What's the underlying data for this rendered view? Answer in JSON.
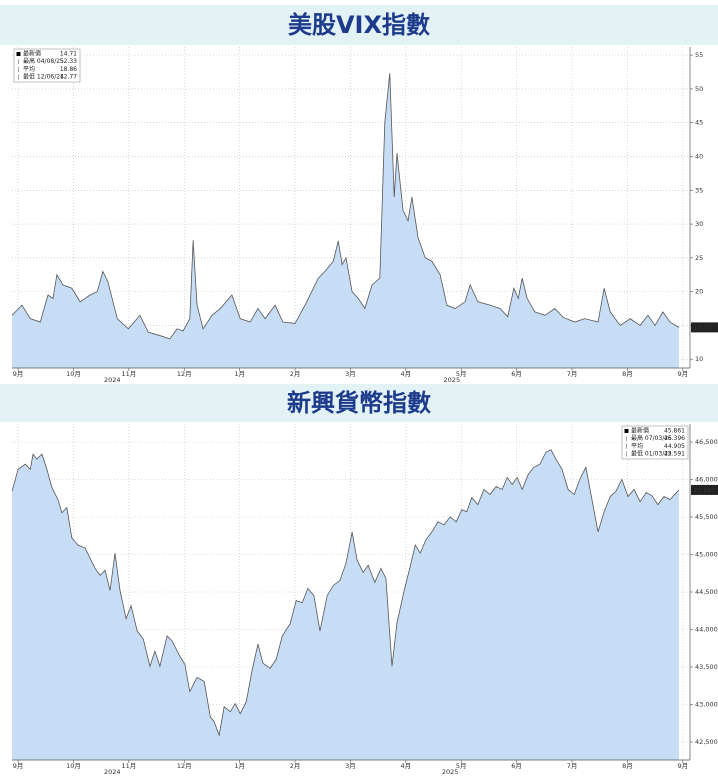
{
  "chart_data": [
    {
      "type": "area",
      "title": "美股VIX指數",
      "color": "#c7ddf6",
      "line_color": "#555555",
      "grid": true,
      "legend": "upper left",
      "legend_items": [
        {
          "label": "最新價",
          "value": "14.71"
        },
        {
          "label": "最高 04/08/25",
          "value": "52.33"
        },
        {
          "label": "平均",
          "value": "18.86"
        },
        {
          "label": "最低 12/06/24",
          "value": "12.77"
        }
      ],
      "last_label": "14.71",
      "xlim": [
        -0.11,
        12.13
      ],
      "ylim": [
        8.7,
        56.2
      ],
      "xticks": [
        {
          "value": 0,
          "label": "9月"
        },
        {
          "value": 1,
          "label": "10月"
        },
        {
          "value": 2,
          "label": "11月"
        },
        {
          "value": 3,
          "label": "12月"
        },
        {
          "value": 4,
          "label": "1月"
        },
        {
          "value": 5,
          "label": "2月"
        },
        {
          "value": 6,
          "label": "3月"
        },
        {
          "value": 7,
          "label": "4月"
        },
        {
          "value": 8,
          "label": "5月"
        },
        {
          "value": 9,
          "label": "6月"
        },
        {
          "value": 10,
          "label": "7月"
        },
        {
          "value": 11,
          "label": "8月"
        },
        {
          "value": 12,
          "label": "9月"
        }
      ],
      "year_labels": [
        {
          "value": 1.7,
          "label": "2024"
        },
        {
          "value": 7.83,
          "label": "2025"
        }
      ],
      "yticks": [
        10,
        15,
        20,
        25,
        30,
        35,
        40,
        45,
        50,
        55
      ],
      "x": [
        -0.11,
        0.07,
        0.22,
        0.4,
        0.54,
        0.63,
        0.7,
        0.81,
        0.97,
        1.12,
        1.3,
        1.43,
        1.53,
        1.62,
        1.79,
        1.99,
        2.2,
        2.35,
        2.56,
        2.74,
        2.87,
        2.98,
        3.1,
        3.16,
        3.23,
        3.34,
        3.5,
        3.65,
        3.86,
        4.01,
        4.19,
        4.33,
        4.46,
        4.64,
        4.78,
        5.0,
        5.18,
        5.42,
        5.54,
        5.69,
        5.78,
        5.85,
        5.92,
        6.03,
        6.14,
        6.26,
        6.39,
        6.53,
        6.62,
        6.71,
        6.79,
        6.84,
        6.95,
        7.04,
        7.11,
        7.22,
        7.35,
        7.47,
        7.62,
        7.74,
        7.89,
        8.07,
        8.16,
        8.3,
        8.52,
        8.7,
        8.84,
        8.95,
        9.03,
        9.1,
        9.19,
        9.33,
        9.51,
        9.69,
        9.84,
        10.05,
        10.23,
        10.47,
        10.58,
        10.69,
        10.87,
        11.05,
        11.23,
        11.37,
        11.5,
        11.64,
        11.77,
        11.93
      ],
      "values": [
        16.5,
        18,
        16,
        15.5,
        19.5,
        19,
        22.5,
        21,
        20.5,
        18.5,
        19.5,
        20,
        23,
        21.5,
        16,
        14.5,
        16.5,
        14,
        13.5,
        13,
        14.5,
        14.2,
        16,
        27.6,
        18,
        14.5,
        16.5,
        17.5,
        19.5,
        16,
        15.5,
        17.5,
        16,
        18,
        15.5,
        15.3,
        18,
        22,
        23,
        24.5,
        27.5,
        24,
        25,
        20,
        19,
        17.5,
        21,
        22,
        45,
        52.33,
        34,
        40.5,
        32,
        30.5,
        34,
        28,
        25,
        24.5,
        22.5,
        18,
        17.5,
        18.5,
        21,
        18.5,
        18,
        17.5,
        16.3,
        20.5,
        19,
        22,
        19,
        17,
        16.5,
        17.5,
        16.2,
        15.5,
        16,
        15.5,
        20.5,
        17,
        15,
        16,
        15,
        16.5,
        15,
        17,
        15.5,
        14.71
      ]
    },
    {
      "type": "area",
      "title": "新興貨幣指數",
      "color": "#c7ddf6",
      "line_color": "#555555",
      "grid": true,
      "legend": "upper right",
      "legend_items": [
        {
          "label": "最新價",
          "value": "45.861"
        },
        {
          "label": "最高 07/03/25",
          "value": "46.396"
        },
        {
          "label": "平均",
          "value": "44.905"
        },
        {
          "label": "最低 01/03/25",
          "value": "42.591"
        }
      ],
      "last_label": "45.861",
      "xlim": [
        -0.11,
        12.13
      ],
      "ylim": [
        42260,
        46740
      ],
      "xticks": [
        {
          "value": 0,
          "label": "9月"
        },
        {
          "value": 1,
          "label": "10月"
        },
        {
          "value": 2,
          "label": "11月"
        },
        {
          "value": 3,
          "label": "12月"
        },
        {
          "value": 4,
          "label": "1月"
        },
        {
          "value": 5,
          "label": "2月"
        },
        {
          "value": 6,
          "label": "3月"
        },
        {
          "value": 7,
          "label": "4月"
        },
        {
          "value": 8,
          "label": "5月"
        },
        {
          "value": 9,
          "label": "6月"
        },
        {
          "value": 10,
          "label": "7月"
        },
        {
          "value": 11,
          "label": "8月"
        },
        {
          "value": 12,
          "label": "9月"
        }
      ],
      "year_labels": [
        {
          "value": 1.7,
          "label": "2024"
        },
        {
          "value": 7.8,
          "label": "2025"
        }
      ],
      "yticks": [
        {
          "value": 42500,
          "label": "42,500"
        },
        {
          "value": 43000,
          "label": "43,000"
        },
        {
          "value": 43500,
          "label": "43,500"
        },
        {
          "value": 44000,
          "label": "44,000"
        },
        {
          "value": 44500,
          "label": "44,500"
        },
        {
          "value": 45000,
          "label": "45,000"
        },
        {
          "value": 45500,
          "label": "45,500"
        },
        {
          "value": 46000,
          "label": "46,000"
        },
        {
          "value": 46500,
          "label": "46,500"
        }
      ],
      "x": [
        -0.11,
        0.0,
        0.13,
        0.22,
        0.27,
        0.34,
        0.43,
        0.52,
        0.61,
        0.72,
        0.79,
        0.88,
        0.97,
        1.08,
        1.21,
        1.39,
        1.48,
        1.57,
        1.66,
        1.75,
        1.84,
        1.95,
        2.04,
        2.15,
        2.26,
        2.38,
        2.47,
        2.56,
        2.69,
        2.78,
        2.92,
        3.01,
        3.1,
        3.23,
        3.36,
        3.47,
        3.54,
        3.63,
        3.72,
        3.83,
        3.92,
        4.01,
        4.12,
        4.22,
        4.33,
        4.42,
        4.55,
        4.66,
        4.77,
        4.91,
        5.02,
        5.13,
        5.23,
        5.34,
        5.45,
        5.58,
        5.69,
        5.81,
        5.92,
        6.03,
        6.12,
        6.23,
        6.32,
        6.44,
        6.55,
        6.64,
        6.75,
        6.84,
        6.97,
        7.08,
        7.17,
        7.26,
        7.36,
        7.47,
        7.58,
        7.69,
        7.8,
        7.91,
        8.01,
        8.1,
        8.19,
        8.3,
        8.41,
        8.52,
        8.63,
        8.74,
        8.83,
        8.92,
        9.01,
        9.1,
        9.21,
        9.31,
        9.42,
        9.53,
        9.62,
        9.71,
        9.82,
        9.93,
        10.04,
        10.14,
        10.25,
        10.36,
        10.47,
        10.58,
        10.69,
        10.79,
        10.9,
        11.01,
        11.12,
        11.23,
        11.34,
        11.44,
        11.55,
        11.66,
        11.77,
        11.93
      ],
      "values": [
        45840,
        46136,
        46204,
        46136,
        46338,
        46271,
        46338,
        46136,
        45894,
        45732,
        45557,
        45625,
        45220,
        45126,
        45086,
        44816,
        44722,
        44789,
        44520,
        45018,
        44520,
        44143,
        44318,
        43981,
        43873,
        43510,
        43712,
        43510,
        43914,
        43847,
        43645,
        43537,
        43173,
        43361,
        43308,
        42836,
        42769,
        42591,
        42971,
        42904,
        43012,
        42877,
        43039,
        43442,
        43806,
        43550,
        43483,
        43604,
        43914,
        44076,
        44385,
        44358,
        44547,
        44452,
        43981,
        44452,
        44587,
        44655,
        44884,
        45301,
        44924,
        44762,
        44857,
        44628,
        44816,
        44682,
        43510,
        44089,
        44520,
        44843,
        45126,
        45018,
        45193,
        45301,
        45436,
        45395,
        45503,
        45436,
        45598,
        45571,
        45759,
        45665,
        45867,
        45800,
        45907,
        45867,
        46028,
        45934,
        46028,
        45867,
        46069,
        46163,
        46204,
        46365,
        46396,
        46271,
        46136,
        45867,
        45800,
        46002,
        46163,
        45732,
        45301,
        45571,
        45773,
        45840,
        46002,
        45773,
        45867,
        45706,
        45827,
        45786,
        45665,
        45773,
        45732,
        45861
      ]
    }
  ]
}
